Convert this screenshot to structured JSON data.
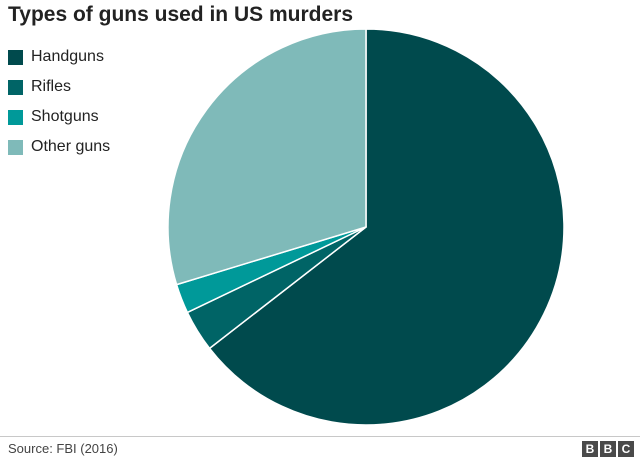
{
  "title": "Types of guns used in US murders",
  "source": "Source: FBI (2016)",
  "logo": [
    "B",
    "B",
    "C"
  ],
  "colors": {
    "handguns": "#004a4d",
    "rifles": "#006466",
    "shotguns": "#009999",
    "other": "#7fbab9",
    "slice_border": "#ffffff"
  },
  "chart_data": {
    "type": "pie",
    "title": "Types of guns used in US murders",
    "start_angle_deg": 0,
    "direction": "clockwise",
    "legend_position": "top-left",
    "slices": [
      {
        "label": "Handguns",
        "value": 64.5,
        "color": "#004a4d"
      },
      {
        "label": "Rifles",
        "value": 3.4,
        "color": "#006466"
      },
      {
        "label": "Shotguns",
        "value": 2.4,
        "color": "#009999"
      },
      {
        "label": "Other guns",
        "value": 29.7,
        "color": "#7fbab9"
      }
    ]
  }
}
